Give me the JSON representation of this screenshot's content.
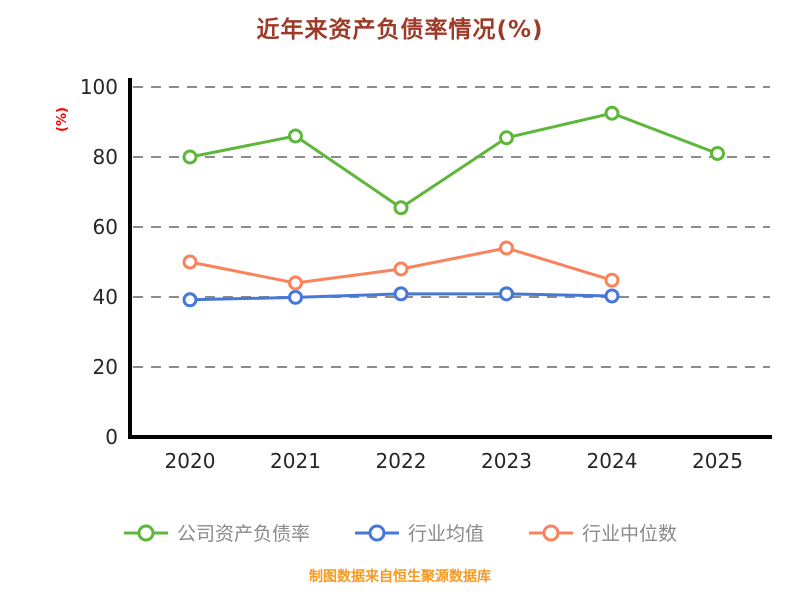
{
  "title": "近年来资产负债率情况(%)",
  "ylabel": "(%)",
  "footer": "制图数据来自恒生聚源数据库",
  "colors": {
    "title": "#9e3a28",
    "ylabel": "#ff0000",
    "footer": "#f59a23",
    "axis": "#000000",
    "grid": "#8c8c8c",
    "tick_text": "#262626",
    "legend_text": "#8a8a8a",
    "series_company": "#5eb73b",
    "series_industry_avg": "#4678d8",
    "series_industry_median": "#f8835c"
  },
  "chart_data": {
    "type": "line",
    "title": "近年来资产负债率情况(%)",
    "xlabel": "",
    "ylabel": "(%)",
    "x": [
      "2020",
      "2021",
      "2022",
      "2023",
      "2024",
      "2025"
    ],
    "ylim": [
      0,
      100
    ],
    "yticks": [
      0,
      20,
      40,
      60,
      80,
      100
    ],
    "grid": "horizontal-dashed",
    "legend_position": "bottom",
    "series": [
      {
        "name": "公司资产负债率",
        "color": "#5eb73b",
        "values": [
          80,
          86,
          65.5,
          85.5,
          92.5,
          81
        ]
      },
      {
        "name": "行业均值",
        "color": "#4678d8",
        "values": [
          39.2,
          39.9,
          40.9,
          40.9,
          40.3
        ]
      },
      {
        "name": "行业中位数",
        "color": "#f8835c",
        "values": [
          50,
          44,
          48,
          54,
          44.8
        ]
      }
    ],
    "footnote": "制图数据来自恒生聚源数据库"
  }
}
